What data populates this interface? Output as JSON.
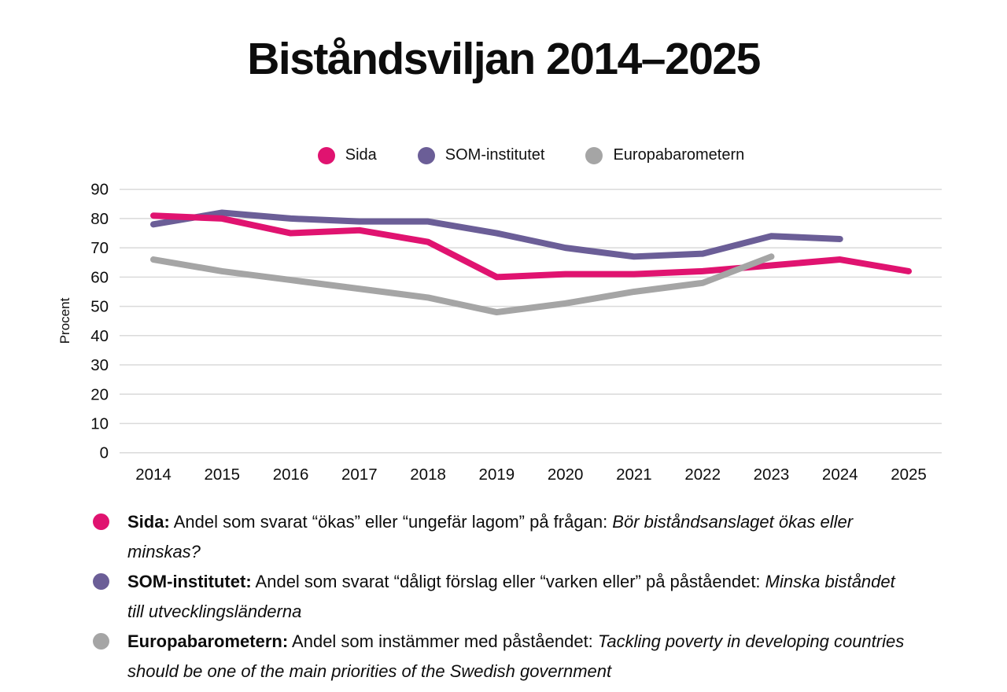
{
  "title": "Biståndsviljan 2014–2025",
  "colors": {
    "sida_pink": "#e01370",
    "som_purple": "#6b5e97",
    "euro_gray": "#a5a5a5",
    "gridline": "#dadada",
    "text": "#0d0d0d"
  },
  "legend": [
    {
      "label": "Sida",
      "color": "#e01370"
    },
    {
      "label": "SOM-institutet",
      "color": "#6b5e97"
    },
    {
      "label": "Europabarometern",
      "color": "#a5a5a5"
    }
  ],
  "chart_data": {
    "type": "line",
    "title": "Biståndsviljan 2014–2025",
    "x": [
      "2014",
      "2015",
      "2016",
      "2017",
      "2018",
      "2019",
      "2020",
      "2021",
      "2022",
      "2023",
      "2024",
      "2025"
    ],
    "series": [
      {
        "name": "Sida",
        "color": "#e01370",
        "values": [
          81,
          80,
          75,
          76,
          72,
          60,
          61,
          61,
          62,
          64,
          66,
          62
        ]
      },
      {
        "name": "SOM-institutet",
        "color": "#6b5e97",
        "values": [
          78,
          82,
          80,
          79,
          79,
          75,
          70,
          67,
          68,
          74,
          73,
          null
        ]
      },
      {
        "name": "Europabarometern",
        "color": "#a5a5a5",
        "values": [
          66,
          62,
          59,
          56,
          53,
          48,
          51,
          55,
          58,
          67,
          null,
          null
        ]
      }
    ],
    "xlabel": "",
    "ylabel": "Procent",
    "ylim": [
      0,
      90
    ],
    "ytick_step": 10,
    "grid": true,
    "legend_position": "top",
    "z_order": [
      "SOM-institutet",
      "Sida",
      "Europabarometern"
    ]
  },
  "footnotes": [
    {
      "label": "Sida:",
      "text": " Andel som svarat “ökas” eller “ungefär lagom” på frågan: ",
      "italic": "Bör biståndsanslaget ökas eller minskas?"
    },
    {
      "label": "SOM-institutet:",
      "text": " Andel som svarat “dåligt förslag eller “varken eller” på påståendet: ",
      "italic": "Minska biståndet till utvecklingsländerna"
    },
    {
      "label": "Europabarometern:",
      "text": "  Andel som instämmer med påståendet: ",
      "italic": "Tackling poverty in developing countries should be one of the main priorities of the Swedish government"
    }
  ]
}
